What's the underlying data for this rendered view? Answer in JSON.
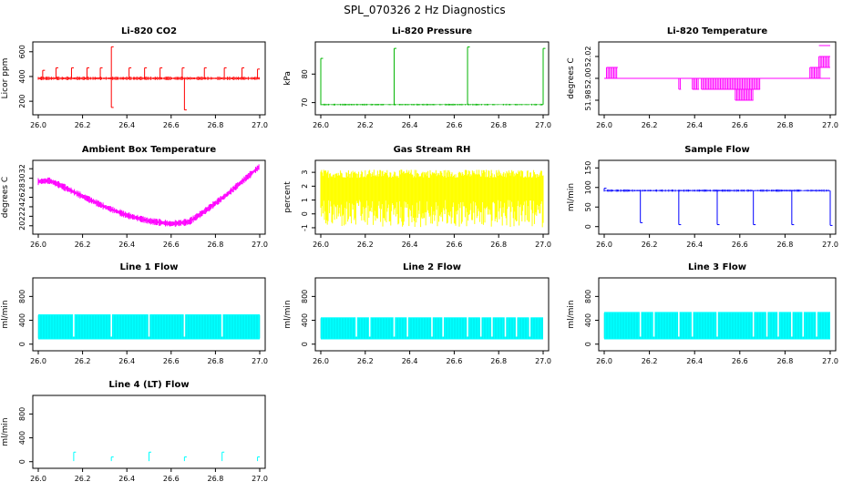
{
  "figure": {
    "title": "SPL_070326  2 Hz Diagnostics"
  },
  "chart_data": [
    {
      "type": "line",
      "title": "Li-820 CO2",
      "xlabel": "",
      "ylabel": "Licor ppm",
      "color": "#ff0000",
      "xlim": [
        26.0,
        27.0
      ],
      "ylim": [
        120,
        650
      ],
      "x_ticks": [
        "26.0",
        "26.2",
        "26.4",
        "26.6",
        "26.8",
        "27.0"
      ],
      "y_ticks": [
        {
          "value": 200,
          "label": "200"
        },
        {
          "value": 400,
          "label": "400"
        },
        {
          "value": 600,
          "label": "600"
        }
      ],
      "series": [
        {
          "name": "CO2",
          "baseline": 385,
          "noise": 15,
          "spikes": [
            {
              "x": 26.02,
              "y": 450
            },
            {
              "x": 26.08,
              "y": 470
            },
            {
              "x": 26.15,
              "y": 470
            },
            {
              "x": 26.22,
              "y": 470
            },
            {
              "x": 26.28,
              "y": 470
            },
            {
              "x": 26.33,
              "y": 640
            },
            {
              "x": 26.33,
              "y": 150
            },
            {
              "x": 26.41,
              "y": 470
            },
            {
              "x": 26.48,
              "y": 470
            },
            {
              "x": 26.55,
              "y": 470
            },
            {
              "x": 26.65,
              "y": 470
            },
            {
              "x": 26.66,
              "y": 130
            },
            {
              "x": 26.75,
              "y": 470
            },
            {
              "x": 26.84,
              "y": 470
            },
            {
              "x": 26.92,
              "y": 470
            },
            {
              "x": 26.99,
              "y": 460
            }
          ]
        }
      ]
    },
    {
      "type": "line",
      "title": "Li-820 Pressure",
      "xlabel": "",
      "ylabel": "kPa",
      "color": "#00b400",
      "xlim": [
        26.0,
        27.0
      ],
      "ylim": [
        67,
        90
      ],
      "x_ticks": [
        "26.0",
        "26.2",
        "26.4",
        "26.6",
        "26.8",
        "27.0"
      ],
      "y_ticks": [
        {
          "value": 70,
          "label": "70"
        },
        {
          "value": 80,
          "label": "80"
        }
      ],
      "series": [
        {
          "name": "Pressure",
          "baseline": 69.3,
          "noise": 0.3,
          "spikes": [
            {
              "x": 26.0,
              "y": 85.5
            },
            {
              "x": 26.33,
              "y": 89
            },
            {
              "x": 26.66,
              "y": 89.5
            },
            {
              "x": 27.0,
              "y": 89
            }
          ]
        }
      ]
    },
    {
      "type": "line",
      "title": "Li-820 Temperature",
      "xlabel": "",
      "ylabel": "degrees C",
      "color": "#ff00ff",
      "xlim": [
        26.0,
        27.0
      ],
      "ylim": [
        51.97,
        52.03
      ],
      "x_ticks": [
        "26.0",
        "26.2",
        "26.4",
        "26.6",
        "26.8",
        "27.0"
      ],
      "y_ticks": [
        {
          "value": 51.98,
          "label": "51.98"
        },
        {
          "value": 52.0,
          "label": "52.00"
        },
        {
          "value": 52.02,
          "label": "52.02"
        }
      ],
      "series": [
        {
          "name": "Temperature",
          "baseline": 52.0,
          "levels": [
            51.99,
            51.98,
            52.01,
            52.02
          ]
        }
      ]
    },
    {
      "type": "line",
      "title": "Ambient Box Temperature",
      "xlabel": "",
      "ylabel": "degrees C",
      "color": "#ff00ff",
      "xlim": [
        26.0,
        27.0
      ],
      "ylim": [
        19,
        33
      ],
      "x_ticks": [
        "26.0",
        "26.2",
        "26.4",
        "26.6",
        "26.8",
        "27.0"
      ],
      "y_ticks": [
        {
          "value": 20,
          "label": "20"
        },
        {
          "value": 22,
          "label": "22"
        },
        {
          "value": 24,
          "label": "24"
        },
        {
          "value": 26,
          "label": "26"
        },
        {
          "value": 28,
          "label": "28"
        },
        {
          "value": 30,
          "label": "30"
        },
        {
          "value": 32,
          "label": "32"
        }
      ],
      "series": [
        {
          "name": "Ambient",
          "noise": 0.5,
          "points": [
            {
              "x": 26.0,
              "y": 29.3
            },
            {
              "x": 26.05,
              "y": 29.5
            },
            {
              "x": 26.1,
              "y": 28.5
            },
            {
              "x": 26.2,
              "y": 26.2
            },
            {
              "x": 26.3,
              "y": 24.0
            },
            {
              "x": 26.4,
              "y": 22.2
            },
            {
              "x": 26.5,
              "y": 21.0
            },
            {
              "x": 26.6,
              "y": 20.4
            },
            {
              "x": 26.68,
              "y": 20.8
            },
            {
              "x": 26.75,
              "y": 23.0
            },
            {
              "x": 26.85,
              "y": 26.5
            },
            {
              "x": 26.95,
              "y": 30.5
            },
            {
              "x": 27.0,
              "y": 32.5
            }
          ]
        }
      ]
    },
    {
      "type": "line",
      "title": "Gas Stream RH",
      "xlabel": "",
      "ylabel": "percent",
      "color": "#ffff00",
      "xlim": [
        26.0,
        27.0
      ],
      "ylim": [
        -1.2,
        3.6
      ],
      "x_ticks": [
        "26.0",
        "26.2",
        "26.4",
        "26.6",
        "26.8",
        "27.0"
      ],
      "y_ticks": [
        {
          "value": -1,
          "label": "-1"
        },
        {
          "value": 0,
          "label": "0"
        },
        {
          "value": 1,
          "label": "1"
        },
        {
          "value": 2,
          "label": "2"
        },
        {
          "value": 3,
          "label": "3"
        }
      ],
      "series": [
        {
          "name": "RH",
          "band": [
            -1.0,
            3.2
          ],
          "core": [
            1.0,
            2.6
          ]
        }
      ]
    },
    {
      "type": "line",
      "title": "Sample Flow",
      "xlabel": "",
      "ylabel": "ml/min",
      "color": "#0000ff",
      "xlim": [
        26.0,
        27.0
      ],
      "ylim": [
        -10,
        160
      ],
      "x_ticks": [
        "26.0",
        "26.2",
        "26.4",
        "26.6",
        "26.8",
        "27.0"
      ],
      "y_ticks": [
        {
          "value": 0,
          "label": "0"
        },
        {
          "value": 50,
          "label": "50"
        },
        {
          "value": 100,
          "label": "100"
        },
        {
          "value": 150,
          "label": "150"
        }
      ],
      "series": [
        {
          "name": "Sample",
          "baseline": 92,
          "noise": 3,
          "dips": [
            {
              "x": 26.0,
              "y": 98
            },
            {
              "x": 26.16,
              "y": 10
            },
            {
              "x": 26.33,
              "y": 5
            },
            {
              "x": 26.5,
              "y": 5
            },
            {
              "x": 26.66,
              "y": 5
            },
            {
              "x": 26.83,
              "y": 5
            },
            {
              "x": 27.0,
              "y": 3
            }
          ]
        }
      ]
    },
    {
      "type": "area",
      "title": "Line 1 Flow",
      "xlabel": "",
      "ylabel": "ml/min",
      "color": "#00ffff",
      "xlim": [
        26.0,
        27.0
      ],
      "ylim": [
        -50,
        1050
      ],
      "x_ticks": [
        "26.0",
        "26.2",
        "26.4",
        "26.6",
        "26.8",
        "27.0"
      ],
      "y_ticks": [
        {
          "value": 0,
          "label": "0"
        },
        {
          "value": 400,
          "label": "400"
        },
        {
          "value": 800,
          "label": "800"
        }
      ],
      "series": [
        {
          "name": "Line 1",
          "lower": 80,
          "upper": 500,
          "gaps": [
            26.16,
            26.33,
            26.5,
            26.66,
            26.83
          ]
        }
      ]
    },
    {
      "type": "area",
      "title": "Line 2 Flow",
      "xlabel": "",
      "ylabel": "ml/min",
      "color": "#00ffff",
      "xlim": [
        26.0,
        27.0
      ],
      "ylim": [
        -50,
        1050
      ],
      "x_ticks": [
        "26.0",
        "26.2",
        "26.4",
        "26.6",
        "26.8",
        "27.0"
      ],
      "y_ticks": [
        {
          "value": 0,
          "label": "0"
        },
        {
          "value": 400,
          "label": "400"
        },
        {
          "value": 800,
          "label": "800"
        }
      ],
      "series": [
        {
          "name": "Line 2",
          "lower": 80,
          "upper": 450,
          "gaps": [
            26.16,
            26.22,
            26.33,
            26.39,
            26.5,
            26.55,
            26.66,
            26.72,
            26.77,
            26.83,
            26.88,
            26.94
          ]
        }
      ]
    },
    {
      "type": "area",
      "title": "Line 3 Flow",
      "xlabel": "",
      "ylabel": "ml/min",
      "color": "#00ffff",
      "xlim": [
        26.0,
        27.0
      ],
      "ylim": [
        -50,
        1050
      ],
      "x_ticks": [
        "26.0",
        "26.2",
        "26.4",
        "26.6",
        "26.8",
        "27.0"
      ],
      "y_ticks": [
        {
          "value": 0,
          "label": "0"
        },
        {
          "value": 400,
          "label": "400"
        },
        {
          "value": 800,
          "label": "800"
        }
      ],
      "series": [
        {
          "name": "Line 3",
          "lower": 80,
          "upper": 540,
          "gaps": [
            26.16,
            26.22,
            26.33,
            26.39,
            26.5,
            26.66,
            26.72,
            26.77,
            26.83,
            26.88,
            26.94
          ]
        }
      ]
    },
    {
      "type": "line",
      "title": "Line 4 (LT) Flow",
      "xlabel": "",
      "ylabel": "ml/min",
      "color": "#00ffff",
      "xlim": [
        26.0,
        27.0
      ],
      "ylim": [
        -50,
        1050
      ],
      "x_ticks": [
        "26.0",
        "26.2",
        "26.4",
        "26.6",
        "26.8",
        "27.0"
      ],
      "y_ticks": [
        {
          "value": 0,
          "label": "0"
        },
        {
          "value": 400,
          "label": "400"
        },
        {
          "value": 800,
          "label": "800"
        }
      ],
      "series": [
        {
          "name": "Line 4",
          "baseline": 10,
          "spikes": [
            {
              "x": 26.16,
              "y": 160
            },
            {
              "x": 26.33,
              "y": 80
            },
            {
              "x": 26.5,
              "y": 160
            },
            {
              "x": 26.66,
              "y": 80
            },
            {
              "x": 26.83,
              "y": 160
            },
            {
              "x": 26.99,
              "y": 80
            }
          ]
        }
      ]
    }
  ]
}
